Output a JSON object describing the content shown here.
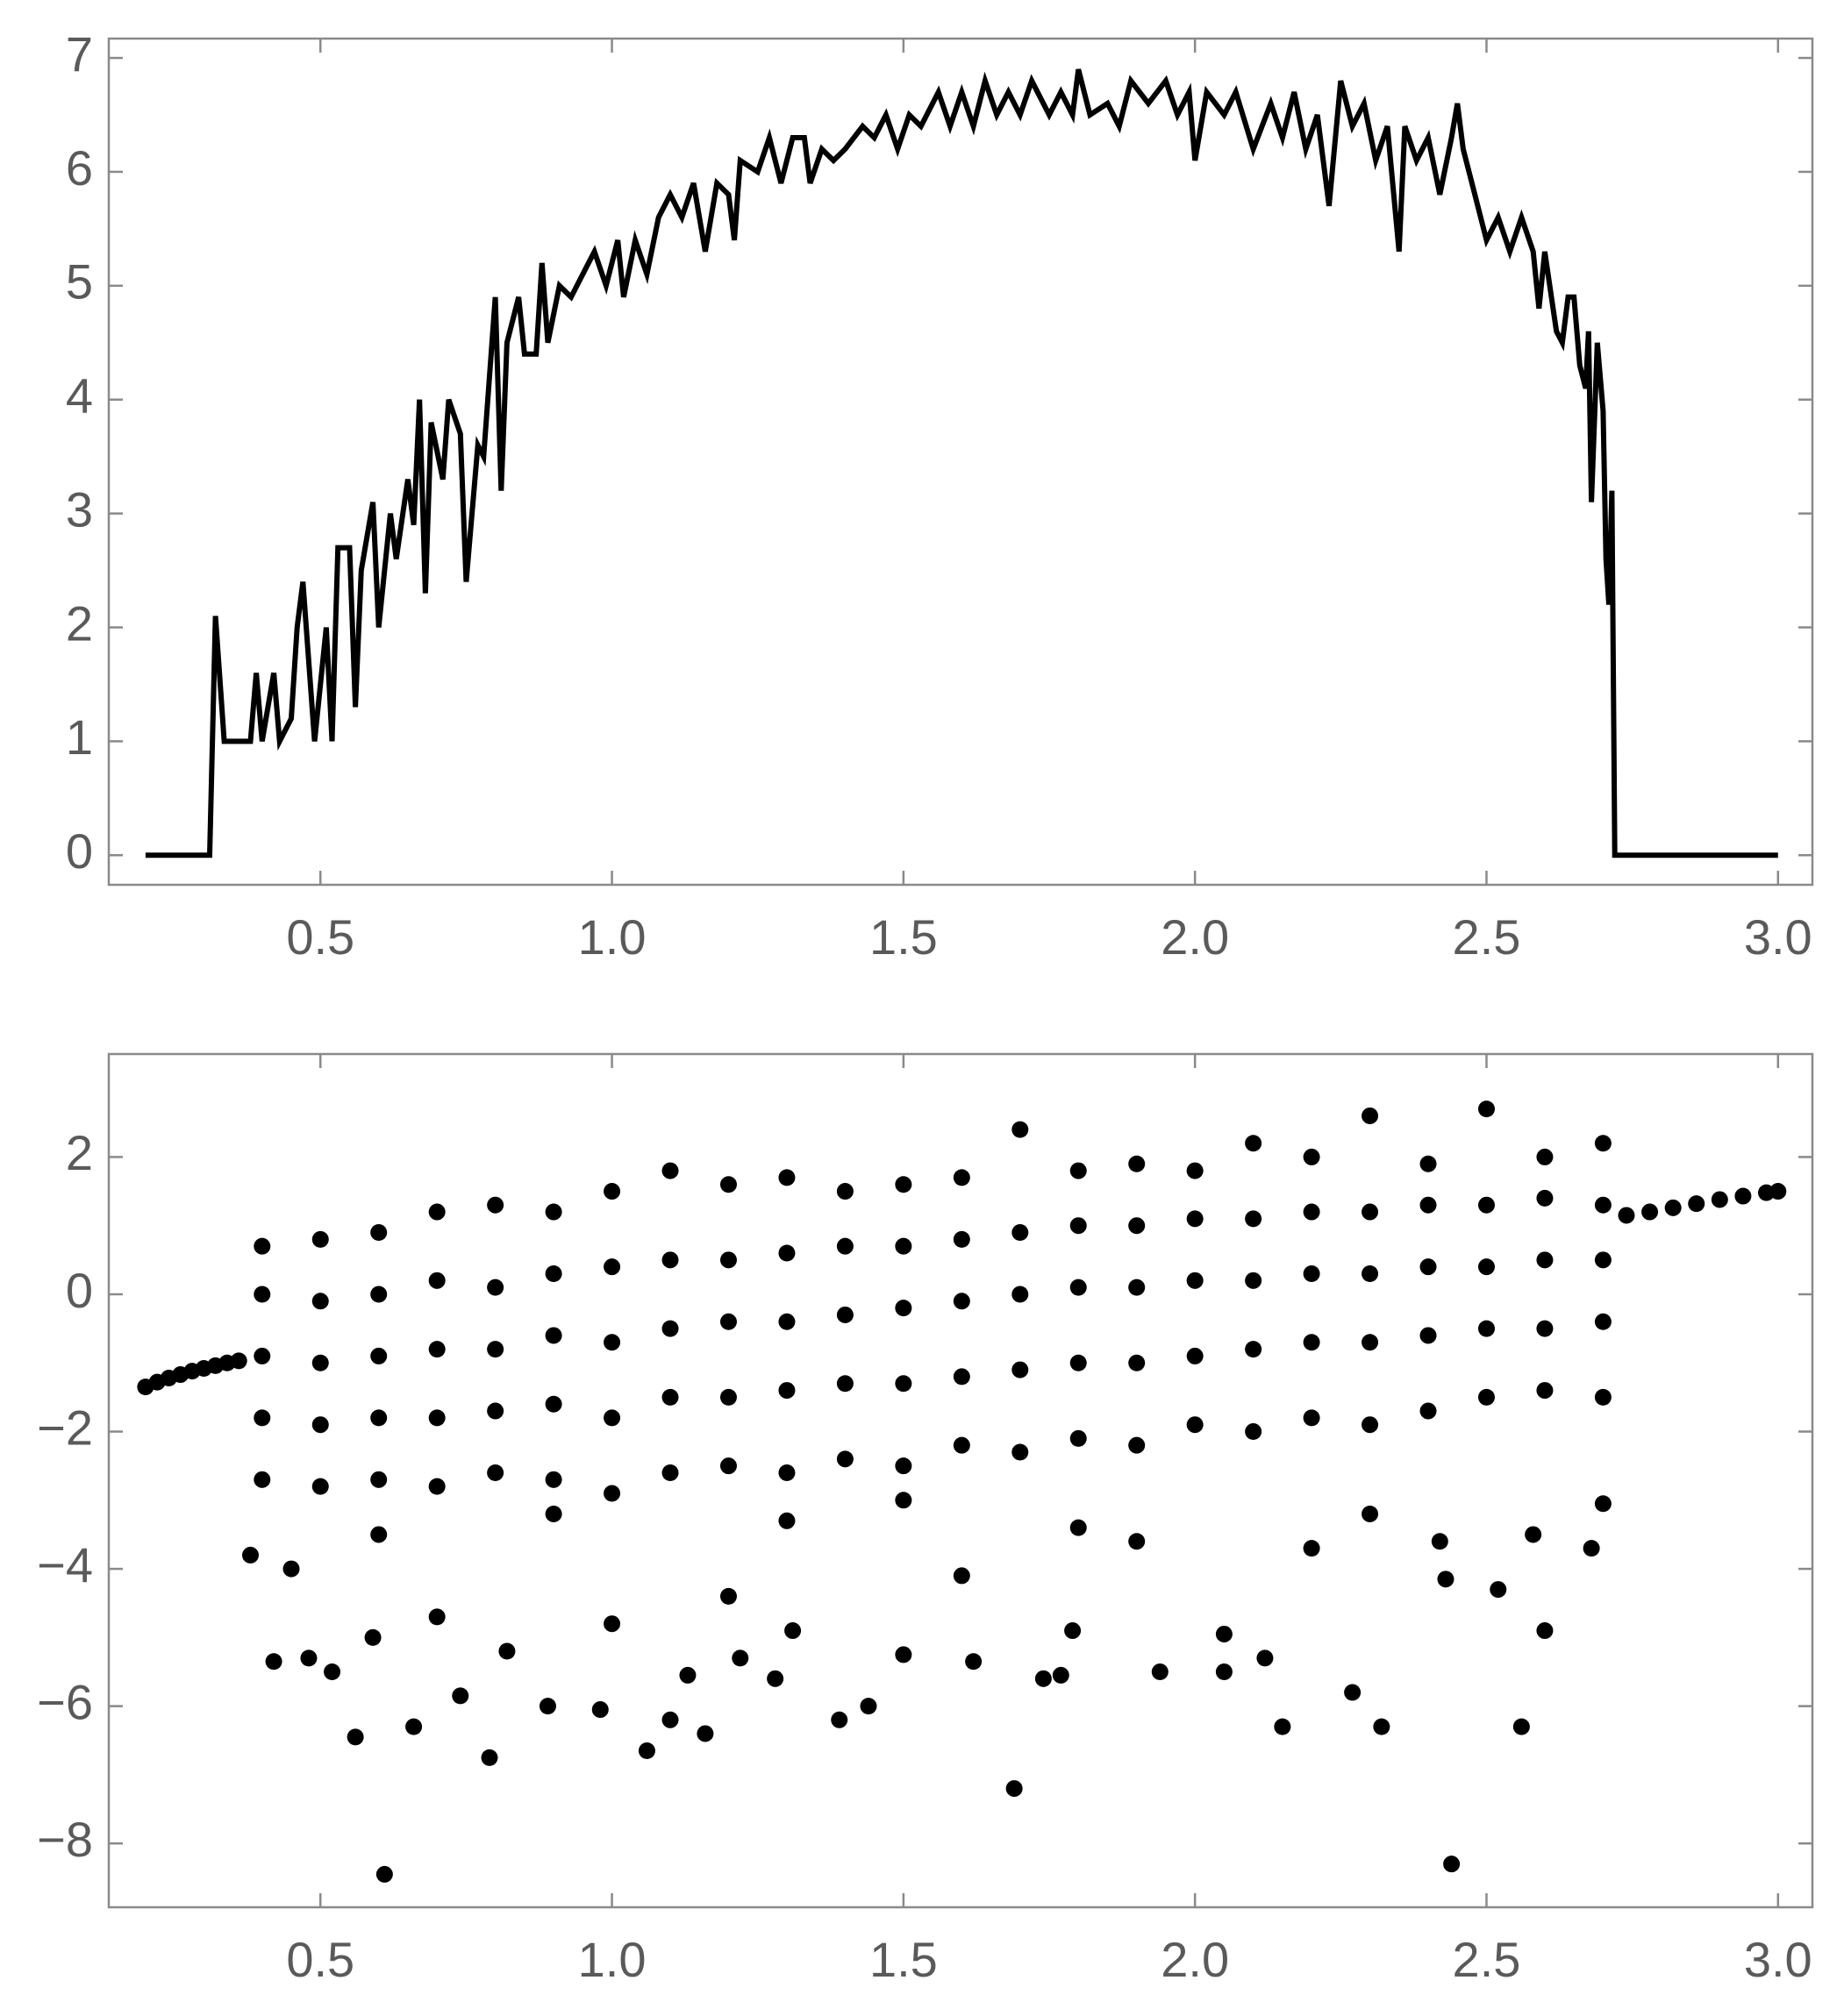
{
  "chart_data": [
    {
      "type": "line",
      "color": "#000000",
      "x": [
        0.2,
        0.31,
        0.32,
        0.335,
        0.38,
        0.39,
        0.4,
        0.42,
        0.43,
        0.45,
        0.46,
        0.47,
        0.49,
        0.51,
        0.52,
        0.53,
        0.55,
        0.56,
        0.57,
        0.59,
        0.6,
        0.62,
        0.63,
        0.65,
        0.66,
        0.67,
        0.68,
        0.69,
        0.71,
        0.72,
        0.74,
        0.75,
        0.77,
        0.78,
        0.8,
        0.81,
        0.82,
        0.84,
        0.85,
        0.87,
        0.88,
        0.89,
        0.91,
        0.93,
        0.95,
        0.97,
        0.99,
        1.01,
        1.02,
        1.04,
        1.06,
        1.08,
        1.1,
        1.12,
        1.14,
        1.16,
        1.18,
        1.2,
        1.21,
        1.22,
        1.25,
        1.27,
        1.29,
        1.31,
        1.33,
        1.34,
        1.36,
        1.38,
        1.4,
        1.43,
        1.45,
        1.47,
        1.49,
        1.51,
        1.53,
        1.56,
        1.58,
        1.6,
        1.62,
        1.64,
        1.66,
        1.68,
        1.7,
        1.72,
        1.75,
        1.77,
        1.79,
        1.8,
        1.82,
        1.85,
        1.87,
        1.89,
        1.92,
        1.95,
        1.97,
        1.99,
        2.0,
        2.02,
        2.05,
        2.07,
        2.1,
        2.13,
        2.15,
        2.17,
        2.19,
        2.21,
        2.23,
        2.25,
        2.27,
        2.29,
        2.31,
        2.33,
        2.35,
        2.36,
        2.38,
        2.4,
        2.42,
        2.44,
        2.45,
        2.46,
        2.48,
        2.5,
        2.52,
        2.54,
        2.56,
        2.58,
        2.59,
        2.6,
        2.62,
        2.63,
        2.64,
        2.65,
        2.66,
        2.67,
        2.675,
        2.68,
        2.69,
        2.7,
        2.705,
        2.71,
        2.715,
        2.72,
        3.0
      ],
      "values": [
        0,
        0,
        2.1,
        1,
        1,
        1.6,
        1,
        1.6,
        1,
        1.2,
        2,
        2.4,
        1,
        2,
        1,
        2.7,
        2.7,
        1.3,
        2.5,
        3.1,
        2,
        3,
        2.6,
        3.3,
        2.9,
        4,
        2.3,
        3.8,
        3.3,
        4,
        3.7,
        2.4,
        3.6,
        3.5,
        4.9,
        3.2,
        4.5,
        4.9,
        4.4,
        4.4,
        5.2,
        4.5,
        5,
        4.9,
        5.1,
        5.3,
        5,
        5.4,
        4.9,
        5.4,
        5.1,
        5.6,
        5.8,
        5.6,
        5.9,
        5.3,
        5.9,
        5.8,
        5.4,
        6.1,
        6,
        6.3,
        5.9,
        6.3,
        6.3,
        5.9,
        6.2,
        6.1,
        6.2,
        6.4,
        6.3,
        6.5,
        6.2,
        6.5,
        6.4,
        6.7,
        6.4,
        6.7,
        6.4,
        6.8,
        6.5,
        6.7,
        6.5,
        6.8,
        6.5,
        6.7,
        6.5,
        6.9,
        6.5,
        6.6,
        6.4,
        6.8,
        6.6,
        6.8,
        6.5,
        6.7,
        6.1,
        6.7,
        6.5,
        6.7,
        6.2,
        6.6,
        6.3,
        6.7,
        6.2,
        6.5,
        5.7,
        6.8,
        6.4,
        6.6,
        6.1,
        6.4,
        5.3,
        6.4,
        6.1,
        6.3,
        5.8,
        6.3,
        6.6,
        6.2,
        5.8,
        5.4,
        5.6,
        5.3,
        5.6,
        5.3,
        4.8,
        5.3,
        4.6,
        4.5,
        4.9,
        4.9,
        4.3,
        4.1,
        4.6,
        3.1,
        4.5,
        3.9,
        2.6,
        2.2,
        3.2,
        0,
        0
      ],
      "xlim": [
        0.137,
        3.059
      ],
      "ylim": [
        -0.26,
        7.17
      ],
      "xticks": [
        0.5,
        {
          "value": 1,
          "label": "1.0"
        },
        1.5,
        {
          "value": 2,
          "label": "2.0"
        },
        2.5,
        {
          "value": 3,
          "label": "3.0"
        }
      ],
      "yticks": [
        0,
        1,
        2,
        3,
        4,
        5,
        6,
        7
      ]
    },
    {
      "type": "scatter",
      "color": "#000000",
      "x": [
        0.2,
        0.22,
        0.24,
        0.26,
        0.28,
        0.3,
        0.32,
        0.34,
        0.36,
        2.74,
        2.78,
        2.82,
        2.86,
        2.9,
        2.94,
        2.98,
        3.0,
        0.61,
        1.69,
        2.44,
        0.56,
        0.79,
        1.06,
        0.66,
        0.89,
        0.98,
        1.1,
        1.16,
        1.39,
        1.44,
        2.15,
        2.32,
        2.56,
        2.27,
        0.74,
        1.28,
        1.5,
        1.62,
        1.74,
        1.77,
        1.94,
        2.05,
        2.12,
        2.6,
        0.42,
        0.48,
        0.52,
        0.59,
        0.82,
        1.0,
        1.13,
        1.22,
        1.31,
        1.79,
        2.05,
        2.52,
        2.43,
        2.68,
        2.7,
        2.58,
        2.42,
        0.38,
        0.45,
        0.7,
        1.2,
        1.6,
        1.9,
        2.2,
        0.6,
        0.9,
        1.3,
        1.5,
        1.8,
        2.3,
        0.4,
        0.4,
        0.4,
        0.4,
        0.4,
        0.5,
        0.5,
        0.5,
        0.5,
        0.5,
        0.6,
        0.6,
        0.6,
        0.6,
        0.6,
        0.7,
        0.7,
        0.7,
        0.7,
        0.7,
        0.8,
        0.8,
        0.8,
        0.8,
        0.8,
        0.9,
        0.9,
        0.9,
        0.9,
        0.9,
        1.0,
        1.0,
        1.0,
        1.0,
        1.0,
        1.1,
        1.1,
        1.1,
        1.1,
        1.1,
        1.2,
        1.2,
        1.2,
        1.2,
        1.2,
        1.3,
        1.3,
        1.3,
        1.3,
        1.3,
        1.4,
        1.4,
        1.4,
        1.4,
        1.4,
        1.5,
        1.5,
        1.5,
        1.5,
        1.5,
        1.6,
        1.6,
        1.6,
        1.6,
        1.6,
        1.7,
        1.7,
        1.7,
        1.7,
        1.7,
        1.8,
        1.8,
        1.8,
        1.8,
        1.8,
        1.9,
        1.9,
        1.9,
        1.9,
        1.9,
        2.0,
        2.0,
        2.0,
        2.0,
        2.0,
        2.1,
        2.1,
        2.1,
        2.1,
        2.1,
        2.2,
        2.2,
        2.2,
        2.2,
        2.2,
        2.3,
        2.3,
        2.3,
        2.3,
        2.3,
        2.4,
        2.4,
        2.4,
        2.4,
        2.4,
        2.5,
        2.5,
        2.5,
        2.5,
        2.5,
        2.6,
        2.6,
        2.6,
        2.6,
        2.6,
        2.7,
        2.7,
        2.7,
        2.7,
        2.7
      ],
      "values": [
        -1.35,
        -1.28,
        -1.22,
        -1.17,
        -1.12,
        -1.08,
        -1.04,
        -1.0,
        -0.97,
        1.15,
        1.2,
        1.26,
        1.32,
        1.38,
        1.43,
        1.48,
        1.5,
        -8.45,
        -7.2,
        -8.3,
        -6.45,
        -6.75,
        -6.65,
        -6.3,
        -6.0,
        -6.05,
        -6.2,
        -6.4,
        -6.2,
        -6.0,
        -6.3,
        -6.3,
        -6.3,
        -5.8,
        -5.85,
        -5.6,
        -5.25,
        -5.35,
        -5.6,
        -5.55,
        -5.5,
        -5.5,
        -5.3,
        -4.9,
        -5.35,
        -5.3,
        -5.5,
        -5.0,
        -5.2,
        -4.8,
        -5.55,
        -5.3,
        -4.9,
        -4.9,
        -4.95,
        -4.3,
        -4.15,
        -3.7,
        -3.05,
        -3.5,
        -3.6,
        -3.8,
        -4.0,
        -4.7,
        -4.4,
        -4.1,
        -3.6,
        -3.7,
        -3.5,
        -3.2,
        -3.3,
        -3.0,
        -3.4,
        -3.2,
        -2.7,
        -1.8,
        -0.9,
        0,
        0.7,
        -2.8,
        -1.9,
        -1,
        -0.1,
        0.8,
        -2.7,
        -1.8,
        -0.9,
        0,
        0.9,
        -2.8,
        -1.8,
        -0.8,
        0.2,
        1.2,
        -2.6,
        -1.7,
        -0.8,
        0.1,
        1.3,
        -2.7,
        -1.6,
        -0.6,
        0.3,
        1.2,
        -2.9,
        -1.8,
        -0.7,
        0.4,
        1.5,
        -2.6,
        -1.5,
        -0.5,
        0.5,
        1.8,
        -2.5,
        -1.5,
        -0.4,
        0.5,
        1.6,
        -2.6,
        -1.4,
        -0.4,
        0.6,
        1.7,
        -2.4,
        -1.3,
        -0.3,
        0.7,
        1.5,
        -2.5,
        -1.3,
        -0.2,
        0.7,
        1.6,
        -2.2,
        -1.2,
        -0.1,
        0.8,
        1.7,
        -2.3,
        -1.1,
        0,
        0.9,
        2.4,
        -2.1,
        -1.0,
        0.1,
        1,
        1.8,
        -2.2,
        -1.0,
        0.1,
        1,
        1.9,
        -1.9,
        -0.9,
        0.2,
        1.1,
        1.8,
        -2.0,
        -0.8,
        0.2,
        1.1,
        2.2,
        -1.8,
        -0.7,
        0.3,
        1.2,
        2.0,
        -1.9,
        -0.7,
        0.3,
        1.2,
        2.6,
        -1.7,
        -0.6,
        0.4,
        1.3,
        1.9,
        -1.5,
        -0.5,
        0.4,
        1.3,
        2.7,
        -1.4,
        -0.5,
        0.5,
        1.4,
        2.0,
        -1.5,
        -0.4,
        0.5,
        1.3,
        2.2
      ],
      "xlim": [
        0.137,
        3.059
      ],
      "ylim": [
        -8.93,
        3.5
      ],
      "xticks": [
        0.5,
        {
          "value": 1,
          "label": "1.0"
        },
        1.5,
        {
          "value": 2,
          "label": "2.0"
        },
        2.5,
        {
          "value": 3,
          "label": "3.0"
        }
      ],
      "yticks": [
        {
          "value": -8,
          "label": "−8"
        },
        {
          "value": -6,
          "label": "−6"
        },
        {
          "value": -4,
          "label": "−4"
        },
        {
          "value": -2,
          "label": "−2"
        },
        0,
        2
      ]
    }
  ]
}
